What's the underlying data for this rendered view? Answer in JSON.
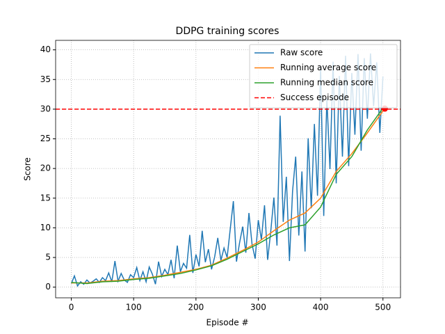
{
  "chart_data": {
    "type": "line",
    "title": "DDPG training scores",
    "xlabel": "Episode #",
    "ylabel": "Score",
    "xlim": [
      -25.15,
      528.15
    ],
    "ylim": [
      -1.8,
      41.6
    ],
    "xticks": [
      0,
      100,
      200,
      300,
      400,
      500
    ],
    "yticks": [
      0,
      5,
      10,
      15,
      20,
      25,
      30,
      35,
      40
    ],
    "grid": true,
    "legend": "upper right",
    "series": [
      {
        "name": "Raw score",
        "color": "#1f77b4",
        "x": [
          0,
          5,
          10,
          15,
          20,
          25,
          30,
          35,
          40,
          45,
          50,
          55,
          60,
          65,
          70,
          75,
          80,
          85,
          90,
          95,
          100,
          105,
          110,
          115,
          120,
          125,
          130,
          135,
          140,
          145,
          150,
          155,
          160,
          165,
          170,
          175,
          180,
          185,
          190,
          195,
          200,
          205,
          210,
          215,
          220,
          225,
          230,
          235,
          240,
          245,
          250,
          255,
          260,
          265,
          270,
          275,
          280,
          285,
          290,
          295,
          300,
          305,
          310,
          315,
          320,
          325,
          330,
          335,
          340,
          345,
          350,
          355,
          360,
          365,
          370,
          375,
          380,
          385,
          390,
          395,
          400,
          405,
          410,
          415,
          420,
          425,
          430,
          435,
          440,
          445,
          450,
          455,
          460,
          465,
          470,
          475,
          480,
          485,
          490,
          495,
          500
        ],
        "values": [
          0.6,
          1.9,
          0.2,
          0.9,
          0.5,
          1.2,
          0.7,
          1.0,
          1.4,
          0.8,
          1.6,
          1.1,
          2.4,
          0.9,
          4.4,
          1.0,
          2.3,
          1.2,
          0.8,
          2.1,
          1.6,
          3.3,
          1.1,
          2.6,
          0.9,
          3.4,
          2.2,
          0.5,
          4.3,
          1.8,
          3.0,
          2.1,
          4.6,
          1.5,
          7.0,
          2.6,
          4.0,
          3.2,
          8.8,
          2.4,
          5.5,
          3.5,
          9.5,
          4.2,
          6.4,
          3.0,
          5.1,
          8.3,
          4.5,
          6.6,
          5.0,
          9.8,
          14.5,
          4.3,
          7.5,
          10.2,
          5.8,
          12.5,
          7.2,
          4.8,
          11.3,
          8.0,
          13.8,
          4.6,
          9.4,
          15.1,
          7.0,
          28.9,
          11.0,
          18.6,
          4.4,
          16.2,
          22.0,
          8.7,
          19.5,
          6.0,
          25.1,
          13.3,
          27.5,
          15.4,
          37.2,
          12.0,
          31.8,
          19.9,
          38.0,
          17.5,
          35.6,
          22.0,
          39.0,
          20.4,
          36.1,
          25.7,
          39.3,
          23.0,
          38.6,
          28.4,
          39.4,
          30.5,
          37.9,
          26.0,
          35.5
        ]
      },
      {
        "name": "Running average score",
        "color": "#ff7f0e",
        "x": [
          0,
          25,
          50,
          75,
          100,
          125,
          150,
          175,
          200,
          225,
          250,
          275,
          300,
          325,
          350,
          375,
          400,
          425,
          450,
          475,
          500
        ],
        "values": [
          0.7,
          0.7,
          1.0,
          1.1,
          1.4,
          1.6,
          2.0,
          2.5,
          3.0,
          3.7,
          4.9,
          6.2,
          7.6,
          9.5,
          11.3,
          12.5,
          15.0,
          19.5,
          22.5,
          26.0,
          29.7
        ]
      },
      {
        "name": "Running median score",
        "color": "#2ca02c",
        "x": [
          0,
          25,
          50,
          75,
          100,
          125,
          150,
          175,
          200,
          225,
          250,
          275,
          300,
          325,
          350,
          375,
          400,
          425,
          450,
          475,
          500
        ],
        "values": [
          0.8,
          0.6,
          0.9,
          1.0,
          1.3,
          1.5,
          1.9,
          2.3,
          2.9,
          3.6,
          4.7,
          6.0,
          7.3,
          8.8,
          10.0,
          10.5,
          13.5,
          19.0,
          22.0,
          26.5,
          30.2
        ]
      }
    ],
    "success_line": {
      "name": "Success episode",
      "color": "#ff0000",
      "value": 30
    },
    "success_point": {
      "x": 503,
      "y": 30.1,
      "color": "#ff0000"
    }
  }
}
